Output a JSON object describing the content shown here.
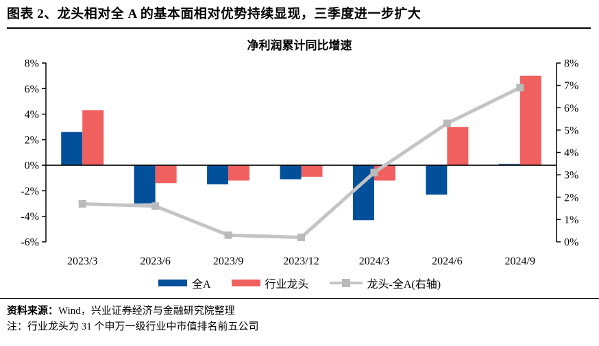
{
  "page": {
    "title": "图表 2、龙头相对全 A 的基本面相对优势持续显现，三季度进一步扩大",
    "source_label": "资料来源：",
    "source_text": "Wind，兴业证券经济与金融研究院整理",
    "note": "注：行业龙头为 31 个申万一级行业中市值排名前五公司"
  },
  "colors": {
    "bar_blue": "#02509A",
    "bar_red": "#F0605F",
    "line_gray": "#C4C4C4",
    "marker_gray": "#BABABA",
    "axis_black": "#000000"
  },
  "chart_data": {
    "type": "bar",
    "subtype": "grouped bars + line on secondary axis",
    "title": "净利润累计同比增速",
    "categories": [
      "2023/3",
      "2023/6",
      "2023/9",
      "2023/12",
      "2024/3",
      "2024/6",
      "2024/9"
    ],
    "series": [
      {
        "name": "全A",
        "type": "bar",
        "axis": "left",
        "color": "#02509A",
        "values": [
          2.6,
          -3.0,
          -1.5,
          -1.1,
          -4.3,
          -2.3,
          0.1
        ]
      },
      {
        "name": "行业龙头",
        "type": "bar",
        "axis": "left",
        "color": "#F0605F",
        "values": [
          4.3,
          -1.4,
          -1.2,
          -0.9,
          -1.2,
          3.0,
          7.0
        ]
      },
      {
        "name": "龙头-全A(右轴)",
        "type": "line",
        "axis": "right",
        "color": "#C4C4C4",
        "values": [
          1.7,
          1.6,
          0.3,
          0.2,
          3.1,
          5.3,
          6.9
        ]
      }
    ],
    "left_axis": {
      "min": -6,
      "max": 8,
      "step": 2,
      "tick_values": [
        8,
        6,
        4,
        2,
        0,
        -2,
        -4,
        -6
      ],
      "tick_labels": [
        "8%",
        "6%",
        "4%",
        "2%",
        "0%",
        "-2%",
        "-4%",
        "-6%"
      ]
    },
    "right_axis": {
      "min": 0,
      "max": 8,
      "step": 1,
      "tick_values": [
        8,
        7,
        6,
        5,
        4,
        3,
        2,
        1,
        0
      ],
      "tick_labels": [
        "8%",
        "7%",
        "6%",
        "5%",
        "4%",
        "3%",
        "2%",
        "1%",
        "0%"
      ]
    },
    "grid": "off",
    "legend_position": "bottom",
    "unit": "percent"
  }
}
